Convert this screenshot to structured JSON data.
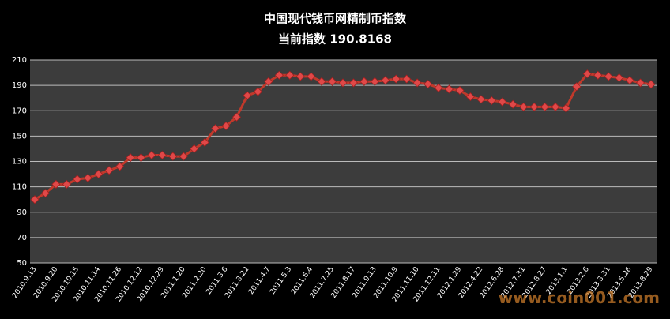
{
  "chart_data": {
    "type": "line",
    "title": "中国现代钱币网精制币指数",
    "subtitle": "当前指数 190.8168",
    "watermark": "www.coin001.com",
    "categories": [
      "2010.9.13",
      null,
      "2010.9.20",
      null,
      "2010.10.15",
      null,
      "2010.11.14",
      null,
      "2010.11.26",
      null,
      "2010.12.12",
      null,
      "2010.12.29",
      null,
      "2011.1.20",
      null,
      "2011.2.20",
      null,
      "2011.3.6",
      null,
      "2011.3.22",
      null,
      "2011.4.7",
      null,
      "2011.5.3",
      null,
      "2011.6.4",
      null,
      "2011.7.25",
      null,
      "2011.8.17",
      null,
      "2011.9.13",
      null,
      "2011.10.9",
      null,
      "2011.11.10",
      null,
      "2011.12.11",
      null,
      "2012.1.29",
      null,
      "2012.4.22",
      null,
      "2012.6.28",
      null,
      "2012.7.31",
      null,
      "2012.8.27",
      null,
      "2013.1.1",
      null,
      "2013.2.6",
      null,
      "2013.3.31",
      null,
      "2013.5.26",
      null,
      "2013.8.29"
    ],
    "series": [
      {
        "color": "#c0392b",
        "values": [
          100,
          105,
          112,
          112,
          116,
          117,
          120,
          123,
          126,
          133,
          133,
          135,
          135,
          134,
          134,
          140,
          145,
          156,
          158,
          165,
          182,
          185,
          193,
          198,
          198,
          197,
          197,
          193,
          193,
          192,
          192,
          193,
          193,
          194,
          195,
          195,
          192,
          191,
          188,
          187,
          186,
          181,
          179,
          178,
          177,
          175,
          173,
          173,
          173,
          173,
          172,
          189,
          199,
          198,
          197,
          196,
          194,
          192,
          190.8168
        ]
      }
    ],
    "ylim": [
      50,
      210
    ],
    "yticks": [
      50,
      70,
      90,
      110,
      130,
      150,
      170,
      190,
      210
    ],
    "grid": true
  }
}
